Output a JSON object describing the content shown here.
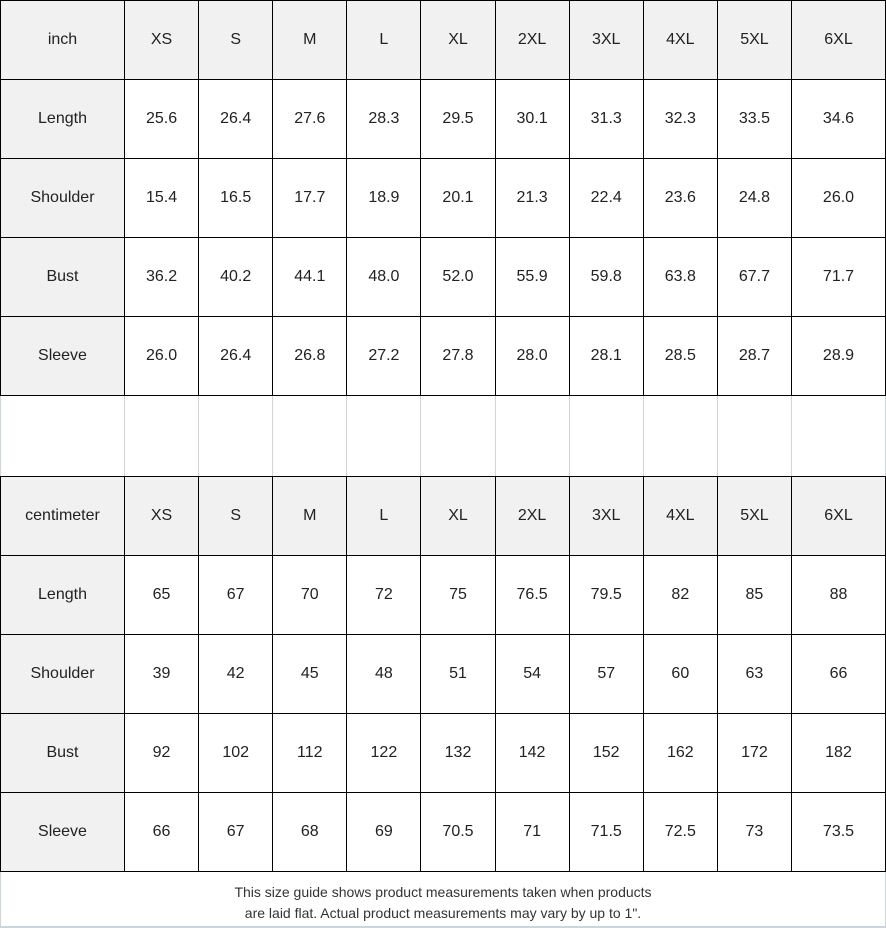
{
  "colors": {
    "table_border": "#000000",
    "header_bg": "#f1f1f1",
    "light_grid": "#ccd4de",
    "text": "#222222"
  },
  "sizes": [
    "XS",
    "S",
    "M",
    "L",
    "XL",
    "2XL",
    "3XL",
    "4XL",
    "5XL",
    "6XL"
  ],
  "inch": {
    "unit": "inch",
    "rows": [
      {
        "label": "Length",
        "values": [
          "25.6",
          "26.4",
          "27.6",
          "28.3",
          "29.5",
          "30.1",
          "31.3",
          "32.3",
          "33.5",
          "34.6"
        ]
      },
      {
        "label": "Shoulder",
        "values": [
          "15.4",
          "16.5",
          "17.7",
          "18.9",
          "20.1",
          "21.3",
          "22.4",
          "23.6",
          "24.8",
          "26.0"
        ]
      },
      {
        "label": "Bust",
        "values": [
          "36.2",
          "40.2",
          "44.1",
          "48.0",
          "52.0",
          "55.9",
          "59.8",
          "63.8",
          "67.7",
          "71.7"
        ]
      },
      {
        "label": "Sleeve",
        "values": [
          "26.0",
          "26.4",
          "26.8",
          "27.2",
          "27.8",
          "28.0",
          "28.1",
          "28.5",
          "28.7",
          "28.9"
        ]
      }
    ]
  },
  "cm": {
    "unit": "centimeter",
    "rows": [
      {
        "label": "Length",
        "values": [
          "65",
          "67",
          "70",
          "72",
          "75",
          "76.5",
          "79.5",
          "82",
          "85",
          "88"
        ]
      },
      {
        "label": "Shoulder",
        "values": [
          "39",
          "42",
          "45",
          "48",
          "51",
          "54",
          "57",
          "60",
          "63",
          "66"
        ]
      },
      {
        "label": "Bust",
        "values": [
          "92",
          "102",
          "112",
          "122",
          "132",
          "142",
          "152",
          "162",
          "172",
          "182"
        ]
      },
      {
        "label": "Sleeve",
        "values": [
          "66",
          "67",
          "68",
          "69",
          "70.5",
          "71",
          "71.5",
          "72.5",
          "73",
          "73.5"
        ]
      }
    ]
  },
  "note": {
    "line1": "This size guide shows product measurements taken when products",
    "line2": "are laid flat. Actual product measurements may vary by up to 1\"."
  }
}
